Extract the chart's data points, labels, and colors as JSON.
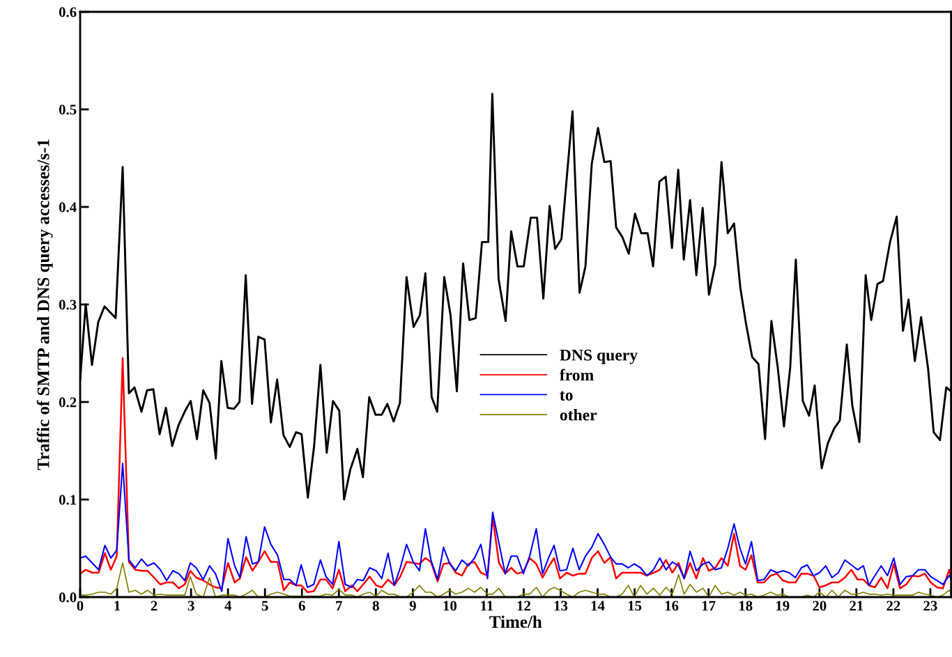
{
  "chart_data": {
    "type": "line",
    "xlabel": "Time/h",
    "ylabel": "Traffic of SMTP and DNS query accesses/s-1",
    "xlim": [
      0,
      23.56
    ],
    "ylim": [
      0,
      0.6
    ],
    "xticks": [
      0,
      1,
      2,
      3,
      4,
      5,
      6,
      7,
      8,
      9,
      10,
      11,
      12,
      13,
      14,
      15,
      16,
      17,
      18,
      19,
      20,
      21,
      22,
      23
    ],
    "yticks": [
      {
        "value": 0,
        "label": "0.0"
      },
      0.1,
      0.2,
      0.3,
      0.4,
      0.5,
      0.6
    ],
    "grid": false,
    "legend": "center",
    "marker": "none",
    "line_style": "solid",
    "series": [
      {
        "name": "DNS query",
        "color": "#000000",
        "x": [
          0,
          0.15,
          0.32,
          0.49,
          0.66,
          0.96,
          1.15,
          1.32,
          1.47,
          1.66,
          1.81,
          1.98,
          2.15,
          2.32,
          2.49,
          2.66,
          2.84,
          2.99,
          3.16,
          3.33,
          3.5,
          3.67,
          3.82,
          3.99,
          4.16,
          4.31,
          4.48,
          4.65,
          4.82,
          4.99,
          5.16,
          5.33,
          5.5,
          5.67,
          5.84,
          5.99,
          6.16,
          6.33,
          6.5,
          6.67,
          6.84,
          7.01,
          7.14,
          7.31,
          7.5,
          7.65,
          7.82,
          7.99,
          8.16,
          8.31,
          8.48,
          8.65,
          8.83,
          9.02,
          9.19,
          9.34,
          9.51,
          9.66,
          9.85,
          10.02,
          10.19,
          10.36,
          10.53,
          10.7,
          10.87,
          11.04,
          11.15,
          11.32,
          11.51,
          11.66,
          11.83,
          12.0,
          12.19,
          12.36,
          12.53,
          12.7,
          12.85,
          13.02,
          13.32,
          13.51,
          13.67,
          13.84,
          14.01,
          14.18,
          14.35,
          14.5,
          14.67,
          14.84,
          15.01,
          15.18,
          15.35,
          15.5,
          15.67,
          15.84,
          16.01,
          16.18,
          16.33,
          16.5,
          16.67,
          16.84,
          17.01,
          17.18,
          17.35,
          17.52,
          17.69,
          17.86,
          18.01,
          18.18,
          18.35,
          18.53,
          18.7,
          18.87,
          19.04,
          19.21,
          19.36,
          19.55,
          19.72,
          19.87,
          20.06,
          20.23,
          20.4,
          20.55,
          20.74,
          20.89,
          21.08,
          21.25,
          21.4,
          21.57,
          21.72,
          21.91,
          22.09,
          22.26,
          22.41,
          22.58,
          22.75,
          22.94,
          23.09,
          23.26,
          23.43,
          23.56
        ],
        "values": [
          0.223,
          0.3,
          0.238,
          0.282,
          0.298,
          0.286,
          0.441,
          0.209,
          0.215,
          0.19,
          0.212,
          0.213,
          0.167,
          0.194,
          0.155,
          0.176,
          0.191,
          0.201,
          0.162,
          0.212,
          0.199,
          0.142,
          0.242,
          0.194,
          0.193,
          0.2,
          0.33,
          0.198,
          0.267,
          0.264,
          0.179,
          0.223,
          0.166,
          0.154,
          0.169,
          0.167,
          0.102,
          0.155,
          0.238,
          0.148,
          0.201,
          0.191,
          0.1,
          0.131,
          0.152,
          0.123,
          0.205,
          0.187,
          0.187,
          0.198,
          0.18,
          0.199,
          0.328,
          0.277,
          0.289,
          0.332,
          0.205,
          0.19,
          0.328,
          0.289,
          0.211,
          0.342,
          0.284,
          0.286,
          0.364,
          0.364,
          0.516,
          0.326,
          0.283,
          0.375,
          0.339,
          0.339,
          0.389,
          0.389,
          0.306,
          0.401,
          0.357,
          0.367,
          0.498,
          0.312,
          0.339,
          0.444,
          0.481,
          0.446,
          0.447,
          0.379,
          0.369,
          0.352,
          0.393,
          0.373,
          0.373,
          0.339,
          0.426,
          0.431,
          0.358,
          0.438,
          0.346,
          0.407,
          0.33,
          0.399,
          0.31,
          0.341,
          0.446,
          0.373,
          0.383,
          0.317,
          0.281,
          0.246,
          0.239,
          0.162,
          0.283,
          0.236,
          0.175,
          0.236,
          0.346,
          0.201,
          0.186,
          0.217,
          0.132,
          0.158,
          0.173,
          0.181,
          0.259,
          0.196,
          0.159,
          0.33,
          0.284,
          0.321,
          0.324,
          0.364,
          0.39,
          0.273,
          0.305,
          0.242,
          0.287,
          0.234,
          0.169,
          0.161,
          0.215,
          0.211
        ]
      },
      {
        "name": "from",
        "color": "#ff0000",
        "x": [
          0,
          0.15,
          0.33,
          0.5,
          0.67,
          0.83,
          0.99,
          1.15,
          1.32,
          1.49,
          1.66,
          1.82,
          2.0,
          2.17,
          2.34,
          2.51,
          2.67,
          2.83,
          2.98,
          3.14,
          3.33,
          3.5,
          3.66,
          3.83,
          4.0,
          4.18,
          4.32,
          4.49,
          4.66,
          4.82,
          4.99,
          5.16,
          5.34,
          5.51,
          5.67,
          5.84,
          5.98,
          6.15,
          6.32,
          6.5,
          6.65,
          6.83,
          7.0,
          7.17,
          7.35,
          7.5,
          7.66,
          7.83,
          8.01,
          8.16,
          8.33,
          8.5,
          8.66,
          8.83,
          9.01,
          9.18,
          9.34,
          9.49,
          9.67,
          9.83,
          10.0,
          10.16,
          10.33,
          10.5,
          10.67,
          10.84,
          11.02,
          11.16,
          11.33,
          11.5,
          11.66,
          11.82,
          11.99,
          12.16,
          12.34,
          12.51,
          12.67,
          12.82,
          12.98,
          13.16,
          13.33,
          13.5,
          13.67,
          13.84,
          14.01,
          14.18,
          14.35,
          14.5,
          14.66,
          14.83,
          14.99,
          15.16,
          15.33,
          15.51,
          15.68,
          15.85,
          16.02,
          16.19,
          16.34,
          16.5,
          16.67,
          16.85,
          17.01,
          17.18,
          17.35,
          17.52,
          17.69,
          17.85,
          18.0,
          18.16,
          18.33,
          18.5,
          18.68,
          18.85,
          19.01,
          19.18,
          19.35,
          19.51,
          19.67,
          19.84,
          20.0,
          20.17,
          20.34,
          20.51,
          20.69,
          20.86,
          21.03,
          21.19,
          21.34,
          21.5,
          21.67,
          21.84,
          22.01,
          22.18,
          22.35,
          22.52,
          22.68,
          22.85,
          23.01,
          23.18,
          23.34,
          23.51,
          23.56
        ],
        "values": [
          0.024,
          0.028,
          0.025,
          0.025,
          0.045,
          0.028,
          0.042,
          0.245,
          0.036,
          0.028,
          0.027,
          0.027,
          0.02,
          0.013,
          0.015,
          0.015,
          0.009,
          0.013,
          0.027,
          0.02,
          0.017,
          0.013,
          0.01,
          0.009,
          0.035,
          0.015,
          0.019,
          0.041,
          0.027,
          0.036,
          0.047,
          0.036,
          0.036,
          0.007,
          0.015,
          0.012,
          0.012,
          0.005,
          0.006,
          0.018,
          0.018,
          0.009,
          0.028,
          0.006,
          0.012,
          0.006,
          0.013,
          0.021,
          0.012,
          0.01,
          0.018,
          0.012,
          0.021,
          0.036,
          0.035,
          0.034,
          0.04,
          0.036,
          0.016,
          0.034,
          0.035,
          0.025,
          0.022,
          0.034,
          0.036,
          0.025,
          0.022,
          0.082,
          0.035,
          0.024,
          0.03,
          0.024,
          0.026,
          0.04,
          0.034,
          0.02,
          0.031,
          0.04,
          0.019,
          0.025,
          0.022,
          0.024,
          0.024,
          0.04,
          0.047,
          0.035,
          0.041,
          0.019,
          0.025,
          0.025,
          0.025,
          0.025,
          0.022,
          0.025,
          0.028,
          0.038,
          0.025,
          0.035,
          0.019,
          0.035,
          0.019,
          0.04,
          0.027,
          0.03,
          0.04,
          0.032,
          0.065,
          0.032,
          0.028,
          0.043,
          0.015,
          0.015,
          0.022,
          0.024,
          0.017,
          0.015,
          0.015,
          0.024,
          0.024,
          0.022,
          0.01,
          0.012,
          0.015,
          0.015,
          0.02,
          0.028,
          0.018,
          0.018,
          0.012,
          0.01,
          0.02,
          0.009,
          0.034,
          0.009,
          0.013,
          0.022,
          0.021,
          0.024,
          0.015,
          0.01,
          0.009,
          0.028,
          0.02
        ]
      },
      {
        "name": "to",
        "color": "#0000ff",
        "x": [
          0,
          0.15,
          0.5,
          0.67,
          0.83,
          0.99,
          1.15,
          1.32,
          1.49,
          1.66,
          1.82,
          2.0,
          2.17,
          2.34,
          2.51,
          2.67,
          2.83,
          2.98,
          3.14,
          3.33,
          3.5,
          3.66,
          3.83,
          4.0,
          4.18,
          4.32,
          4.49,
          4.66,
          4.82,
          4.99,
          5.16,
          5.34,
          5.51,
          5.67,
          5.84,
          5.98,
          6.15,
          6.32,
          6.5,
          6.65,
          6.83,
          7.0,
          7.17,
          7.35,
          7.5,
          7.66,
          7.83,
          8.01,
          8.16,
          8.33,
          8.5,
          8.66,
          8.83,
          9.01,
          9.18,
          9.34,
          9.49,
          9.67,
          9.83,
          10.0,
          10.16,
          10.33,
          10.5,
          10.67,
          10.84,
          11.02,
          11.16,
          11.33,
          11.5,
          11.66,
          11.82,
          11.99,
          12.16,
          12.34,
          12.51,
          12.67,
          12.82,
          12.98,
          13.16,
          13.33,
          13.5,
          13.67,
          13.84,
          14.01,
          14.18,
          14.35,
          14.5,
          14.66,
          14.83,
          14.99,
          15.16,
          15.33,
          15.51,
          15.68,
          15.85,
          16.02,
          16.19,
          16.34,
          16.5,
          16.67,
          16.85,
          17.01,
          17.18,
          17.35,
          17.52,
          17.69,
          17.85,
          18.0,
          18.16,
          18.33,
          18.5,
          18.68,
          18.85,
          19.01,
          19.18,
          19.35,
          19.51,
          19.67,
          19.84,
          20.0,
          20.17,
          20.34,
          20.51,
          20.69,
          20.86,
          21.03,
          21.19,
          21.34,
          21.5,
          21.67,
          21.84,
          22.01,
          22.18,
          22.35,
          22.52,
          22.68,
          22.85,
          23.01,
          23.18,
          23.34,
          23.51,
          23.56
        ],
        "values": [
          0.04,
          0.042,
          0.028,
          0.053,
          0.04,
          0.048,
          0.137,
          0.038,
          0.03,
          0.039,
          0.032,
          0.035,
          0.028,
          0.017,
          0.027,
          0.024,
          0.017,
          0.035,
          0.03,
          0.018,
          0.032,
          0.024,
          0.006,
          0.06,
          0.032,
          0.02,
          0.062,
          0.034,
          0.036,
          0.072,
          0.054,
          0.043,
          0.018,
          0.018,
          0.012,
          0.033,
          0.01,
          0.013,
          0.038,
          0.021,
          0.013,
          0.057,
          0.013,
          0.01,
          0.018,
          0.017,
          0.03,
          0.027,
          0.019,
          0.045,
          0.012,
          0.03,
          0.054,
          0.036,
          0.027,
          0.07,
          0.038,
          0.018,
          0.051,
          0.034,
          0.027,
          0.038,
          0.032,
          0.04,
          0.054,
          0.019,
          0.087,
          0.055,
          0.024,
          0.042,
          0.042,
          0.024,
          0.042,
          0.07,
          0.024,
          0.04,
          0.053,
          0.027,
          0.028,
          0.05,
          0.028,
          0.042,
          0.051,
          0.065,
          0.054,
          0.041,
          0.034,
          0.034,
          0.03,
          0.034,
          0.03,
          0.022,
          0.028,
          0.04,
          0.028,
          0.036,
          0.032,
          0.019,
          0.047,
          0.027,
          0.034,
          0.036,
          0.028,
          0.03,
          0.05,
          0.075,
          0.05,
          0.034,
          0.057,
          0.017,
          0.018,
          0.028,
          0.025,
          0.027,
          0.025,
          0.02,
          0.03,
          0.033,
          0.022,
          0.025,
          0.032,
          0.02,
          0.025,
          0.038,
          0.033,
          0.028,
          0.032,
          0.012,
          0.022,
          0.032,
          0.022,
          0.04,
          0.013,
          0.021,
          0.022,
          0.028,
          0.028,
          0.021,
          0.017,
          0.013,
          0.022,
          0.019
        ]
      },
      {
        "name": "other",
        "color": "#808000",
        "x": [
          0,
          0.15,
          0.33,
          0.5,
          0.67,
          0.83,
          0.99,
          1.15,
          1.32,
          1.49,
          1.66,
          1.82,
          2.0,
          2.17,
          2.34,
          2.51,
          2.67,
          2.83,
          2.98,
          3.14,
          3.33,
          3.5,
          3.66,
          3.83,
          4.0,
          4.18,
          4.32,
          4.49,
          4.66,
          4.82,
          4.99,
          5.16,
          5.34,
          5.51,
          5.67,
          5.84,
          5.98,
          6.15,
          6.32,
          6.5,
          6.65,
          6.83,
          7.0,
          7.17,
          7.35,
          7.5,
          7.66,
          7.83,
          8.01,
          8.16,
          8.33,
          8.5,
          8.66,
          8.83,
          9.01,
          9.18,
          9.34,
          9.49,
          9.67,
          9.83,
          10.0,
          10.16,
          10.33,
          10.5,
          10.67,
          10.84,
          11.02,
          11.16,
          11.33,
          11.5,
          11.66,
          11.82,
          11.99,
          12.16,
          12.34,
          12.51,
          12.67,
          12.82,
          12.98,
          13.16,
          13.33,
          13.5,
          13.67,
          13.84,
          14.01,
          14.18,
          14.35,
          14.5,
          14.66,
          14.83,
          14.99,
          15.16,
          15.33,
          15.51,
          15.68,
          15.85,
          16.02,
          16.19,
          16.34,
          16.5,
          16.67,
          16.85,
          17.01,
          17.18,
          17.35,
          17.52,
          17.69,
          17.85,
          18.0,
          18.16,
          18.33,
          18.5,
          18.68,
          18.85,
          19.01,
          19.18,
          19.35,
          19.51,
          19.67,
          19.84,
          20.0,
          20.17,
          20.34,
          20.51,
          20.69,
          20.86,
          21.03,
          21.19,
          21.34,
          21.5,
          21.67,
          21.84,
          22.01,
          22.18,
          22.35,
          22.52,
          22.68,
          22.85,
          23.01,
          23.18,
          23.34,
          23.51,
          23.56
        ],
        "values": [
          0.002,
          0.002,
          0.003,
          0.005,
          0.005,
          0.003,
          0.009,
          0.035,
          0.005,
          0.007,
          0.003,
          0.007,
          0.002,
          0.003,
          0.002,
          0.002,
          0.002,
          0.002,
          0.021,
          0.003,
          0.0,
          0.02,
          0.0,
          0.002,
          0.002,
          0.002,
          0.0,
          0.003,
          0.007,
          0.0,
          0.0,
          0.003,
          0.005,
          0.003,
          0.001,
          0.001,
          0.001,
          0.001,
          0.001,
          0.001,
          0.003,
          0.002,
          0.008,
          0.002,
          0.002,
          0.0,
          0.003,
          0.005,
          0.001,
          0.007,
          0.003,
          0.003,
          0.0,
          0.0,
          0.005,
          0.012,
          0.005,
          0.005,
          0.0,
          0.003,
          0.007,
          0.003,
          0.005,
          0.009,
          0.005,
          0.01,
          0.003,
          0.003,
          0.009,
          0.0,
          0.0,
          0.0,
          0.003,
          0.003,
          0.01,
          0.0,
          0.007,
          0.01,
          0.007,
          0.003,
          0.0,
          0.005,
          0.007,
          0.005,
          0.003,
          0.003,
          0.0,
          0.0,
          0.003,
          0.012,
          0.0,
          0.012,
          0.003,
          0.009,
          0.002,
          0.01,
          0.003,
          0.023,
          0.003,
          0.013,
          0.005,
          0.009,
          0.0,
          0.012,
          0.003,
          0.005,
          0.002,
          0.005,
          0.002,
          0.003,
          0.0,
          0.002,
          0.005,
          0.002,
          0.003,
          0.0,
          0.0,
          0.0,
          0.002,
          0.0,
          0.005,
          0.0,
          0.007,
          0.0,
          0.007,
          0.003,
          0.003,
          0.005,
          0.003,
          0.003,
          0.002,
          0.003,
          0.002,
          0.002,
          0.002,
          0.002,
          0.005,
          0.003,
          0.002,
          0.0,
          0.002,
          0.007,
          0.005
        ]
      }
    ]
  }
}
